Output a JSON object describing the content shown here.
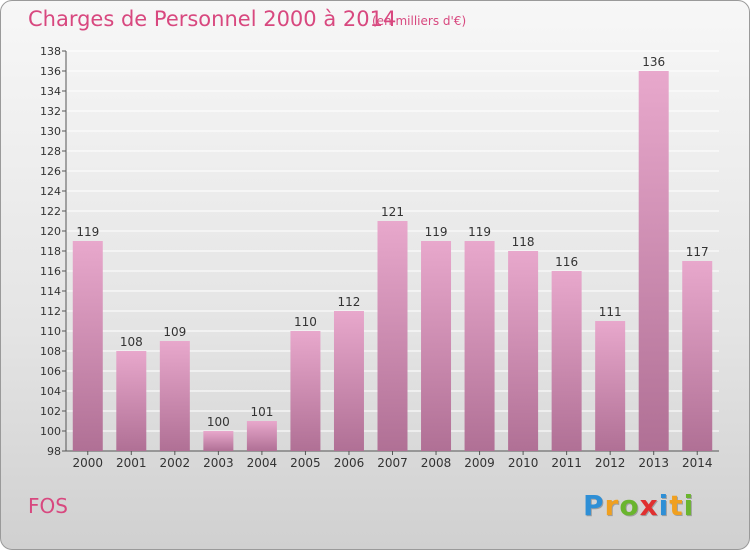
{
  "chart_data": {
    "type": "bar",
    "title": "Charges de Personnel 2000 à 2014",
    "subtitle": "(en milliers d'€)",
    "categories": [
      "2000",
      "2001",
      "2002",
      "2003",
      "2004",
      "2005",
      "2006",
      "2007",
      "2008",
      "2009",
      "2010",
      "2011",
      "2012",
      "2013",
      "2014"
    ],
    "values": [
      119,
      108,
      109,
      100,
      101,
      110,
      112,
      121,
      119,
      119,
      118,
      116,
      111,
      136,
      117
    ],
    "ylim": [
      98,
      138
    ],
    "yticks": [
      "98",
      "100",
      "102",
      "104",
      "106",
      "108",
      "110",
      "112",
      "114",
      "116",
      "118",
      "120",
      "122",
      "124",
      "126",
      "128",
      "130",
      "132",
      "134",
      "136",
      "138"
    ],
    "grid": true,
    "bar_color_top": "#e8a8cc",
    "bar_color_bottom": "#b07095"
  },
  "footer": {
    "place": "FOS",
    "logo_letters": [
      "P",
      "r",
      "o",
      "x",
      "i",
      "t",
      "i"
    ],
    "logo_colors": [
      "#2e8fd6",
      "#f0a020",
      "#6ab52e",
      "#e03030",
      "#2e8fd6",
      "#f0a020",
      "#6ab52e"
    ]
  },
  "text_color": "#d8487f"
}
